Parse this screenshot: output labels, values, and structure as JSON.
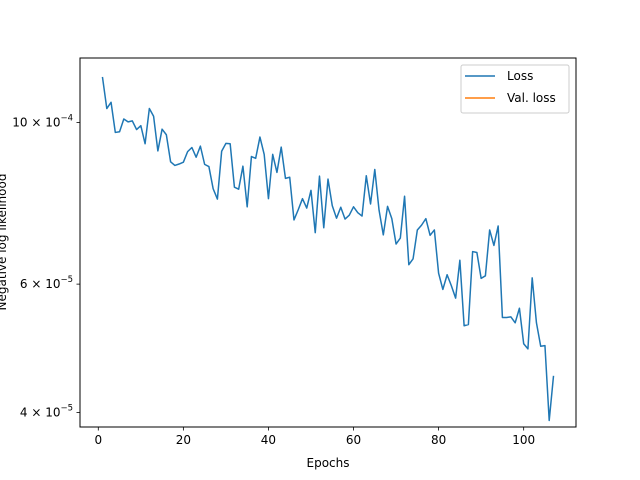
{
  "chart_data": {
    "type": "line",
    "title": "",
    "xlabel": "Epochs",
    "ylabel": "Negative log likelihood",
    "yscale": "log",
    "xlim": [
      -4.3,
      112.3
    ],
    "ylim": [
      3.82e-05,
      0.0001226
    ],
    "grid": false,
    "legend_position": "top-right",
    "x_ticks": [
      0,
      20,
      40,
      60,
      80,
      100
    ],
    "x_tick_labels": [
      "0",
      "20",
      "40",
      "60",
      "80",
      "100"
    ],
    "y_ticks": [
      4e-05,
      6e-05,
      0.0001
    ],
    "y_tick_labels": [
      {
        "mantissa": "4",
        "exponent": "−5"
      },
      {
        "mantissa": "6",
        "exponent": "−5"
      },
      {
        "mantissa": "10",
        "exponent": "−4"
      }
    ],
    "series": [
      {
        "name": "Loss",
        "color": "#1f77b4",
        "x": [
          1,
          2,
          3,
          4,
          5,
          6,
          7,
          8,
          9,
          10,
          11,
          12,
          13,
          14,
          15,
          16,
          17,
          18,
          19,
          20,
          21,
          22,
          23,
          24,
          25,
          26,
          27,
          28,
          29,
          30,
          31,
          32,
          33,
          34,
          35,
          36,
          37,
          38,
          39,
          40,
          41,
          42,
          43,
          44,
          45,
          46,
          47,
          48,
          49,
          50,
          51,
          52,
          53,
          54,
          55,
          56,
          57,
          58,
          59,
          60,
          61,
          62,
          63,
          64,
          65,
          66,
          67,
          68,
          69,
          70,
          71,
          72,
          73,
          74,
          75,
          76,
          77,
          78,
          79,
          80,
          81,
          82,
          83,
          84,
          85,
          86,
          87,
          88,
          89,
          90,
          91,
          92,
          93,
          94,
          95,
          96,
          97,
          98,
          99,
          100,
          101,
          102,
          103,
          104,
          105,
          106,
          107
        ],
        "values": [
          0.0001152,
          0.0001045,
          0.0001066,
          9.69e-05,
          9.71e-05,
          0.0001011,
          0.0001002,
          0.0001005,
          9.78e-05,
          9.9e-05,
          9.35e-05,
          0.0001045,
          0.000102,
          9.14e-05,
          9.79e-05,
          9.62e-05,
          8.83e-05,
          8.73e-05,
          8.77e-05,
          8.82e-05,
          9.12e-05,
          9.24e-05,
          8.96e-05,
          9.28e-05,
          8.76e-05,
          8.7e-05,
          8.11e-05,
          7.85e-05,
          9.13e-05,
          9.36e-05,
          9.35e-05,
          8.15e-05,
          8.1e-05,
          8.71e-05,
          7.66e-05,
          8.98e-05,
          8.93e-05,
          9.55e-05,
          9.04e-05,
          7.86e-05,
          9.04e-05,
          8.54e-05,
          9.25e-05,
          8.38e-05,
          8.41e-05,
          7.35e-05,
          7.59e-05,
          7.86e-05,
          7.63e-05,
          8.07e-05,
          7.06e-05,
          8.44e-05,
          7.17e-05,
          8.36e-05,
          7.69e-05,
          7.39e-05,
          7.65e-05,
          7.37e-05,
          7.46e-05,
          7.66e-05,
          7.52e-05,
          7.44e-05,
          8.45e-05,
          7.73e-05,
          8.62e-05,
          7.58e-05,
          7.01e-05,
          7.67e-05,
          7.38e-05,
          6.81e-05,
          6.94e-05,
          7.92e-05,
          6.38e-05,
          6.5e-05,
          7.12e-05,
          7.23e-05,
          7.38e-05,
          7e-05,
          7.12e-05,
          6.21e-05,
          5.9e-05,
          6.18e-05,
          5.97e-05,
          5.74e-05,
          6.47e-05,
          5.26e-05,
          5.28e-05,
          6.65e-05,
          6.63e-05,
          6.11e-05,
          6.16e-05,
          7.12e-05,
          6.78e-05,
          7.21e-05,
          5.4e-05,
          5.4e-05,
          5.41e-05,
          5.31e-05,
          5.56e-05,
          4.97e-05,
          4.89e-05,
          6.12e-05,
          5.31e-05,
          4.93e-05,
          4.94e-05,
          3.9e-05,
          4.48e-05
        ]
      },
      {
        "name": "Val. loss",
        "color": "#ff7f0e",
        "x": [],
        "values": []
      }
    ]
  }
}
